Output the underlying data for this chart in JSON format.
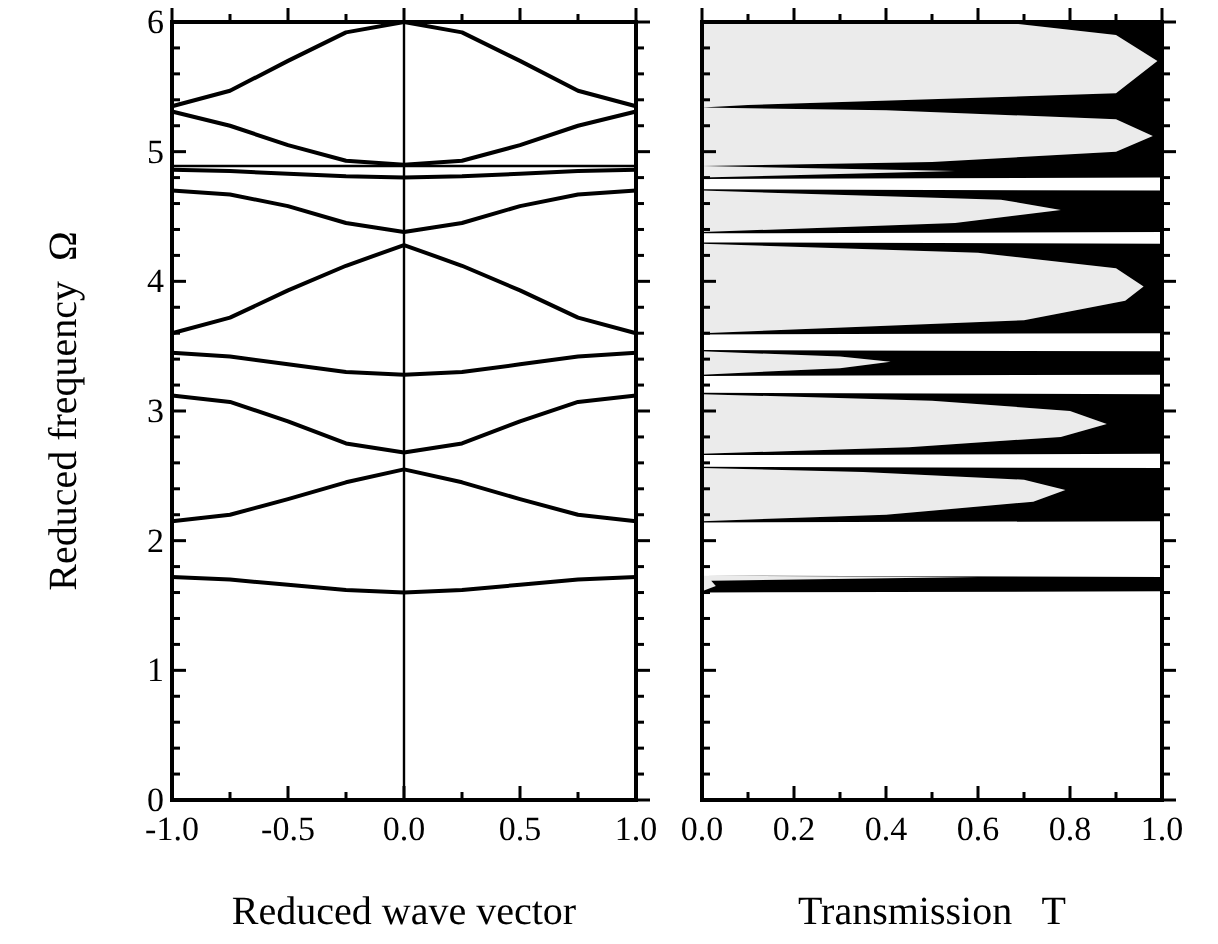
{
  "chart_data": [
    {
      "type": "line",
      "ylabel": "Reduced frequency  Ω",
      "xlabel": "Reduced wave vector",
      "x": [
        -1,
        -0.75,
        -0.5,
        -0.25,
        0,
        0.25,
        0.5,
        0.75,
        1
      ],
      "series": [
        {
          "color": "#000000",
          "values": [
            1.72,
            1.7,
            1.66,
            1.62,
            1.6,
            1.62,
            1.66,
            1.7,
            1.72
          ]
        },
        {
          "color": "#000000",
          "values": [
            2.15,
            2.2,
            2.32,
            2.45,
            2.55,
            2.45,
            2.32,
            2.2,
            2.15
          ]
        },
        {
          "color": "#000000",
          "values": [
            3.12,
            3.07,
            2.92,
            2.75,
            2.68,
            2.75,
            2.92,
            3.07,
            3.12
          ]
        },
        {
          "color": "#000000",
          "values": [
            3.45,
            3.42,
            3.36,
            3.3,
            3.28,
            3.3,
            3.36,
            3.42,
            3.45
          ]
        },
        {
          "color": "#000000",
          "values": [
            3.6,
            3.72,
            3.93,
            4.12,
            4.28,
            4.12,
            3.93,
            3.72,
            3.6
          ]
        },
        {
          "color": "#000000",
          "values": [
            4.7,
            4.67,
            4.58,
            4.45,
            4.38,
            4.45,
            4.58,
            4.67,
            4.7
          ]
        },
        {
          "color": "#000000",
          "values": [
            4.86,
            4.85,
            4.83,
            4.81,
            4.8,
            4.81,
            4.83,
            4.85,
            4.86
          ]
        },
        {
          "color": "#000000",
          "values": [
            5.31,
            5.2,
            5.05,
            4.93,
            4.9,
            4.93,
            5.05,
            5.2,
            5.31
          ]
        },
        {
          "color": "#000000",
          "values": [
            5.35,
            5.47,
            5.7,
            5.92,
            6.0,
            5.92,
            5.7,
            5.47,
            5.35
          ]
        }
      ],
      "ref_lines": [
        {
          "axis": "x",
          "value": 0,
          "color": "#000000"
        },
        {
          "axis": "y",
          "value": 4.89,
          "color": "#000000"
        }
      ],
      "xlim": [
        -1,
        1
      ],
      "xticks": [
        {
          "value": -1,
          "label": "-1.0"
        },
        {
          "value": -0.75,
          "label": null
        },
        {
          "value": -0.5,
          "label": "-0.5"
        },
        {
          "value": -0.25,
          "label": null
        },
        {
          "value": 0,
          "label": "0.0"
        },
        {
          "value": 0.25,
          "label": null
        },
        {
          "value": 0.5,
          "label": "0.5"
        },
        {
          "value": 0.75,
          "label": null
        },
        {
          "value": 1,
          "label": "1.0"
        }
      ],
      "ylim": [
        0,
        6
      ],
      "yticks": [
        0,
        {
          "value": 0.2,
          "label": null
        },
        {
          "value": 0.4,
          "label": null
        },
        {
          "value": 0.6,
          "label": null
        },
        {
          "value": 0.8,
          "label": null
        },
        1,
        {
          "value": 1.2,
          "label": null
        },
        {
          "value": 1.4,
          "label": null
        },
        {
          "value": 1.6,
          "label": null
        },
        {
          "value": 1.8,
          "label": null
        },
        2,
        {
          "value": 2.2,
          "label": null
        },
        {
          "value": 2.4,
          "label": null
        },
        {
          "value": 2.6,
          "label": null
        },
        {
          "value": 2.8,
          "label": null
        },
        3,
        {
          "value": 3.2,
          "label": null
        },
        {
          "value": 3.4,
          "label": null
        },
        {
          "value": 3.6,
          "label": null
        },
        {
          "value": 3.8,
          "label": null
        },
        4,
        {
          "value": 4.2,
          "label": null
        },
        {
          "value": 4.4,
          "label": null
        },
        {
          "value": 4.6,
          "label": null
        },
        {
          "value": 4.8,
          "label": null
        },
        5,
        {
          "value": 5.2,
          "label": null
        },
        {
          "value": 5.4,
          "label": null
        },
        {
          "value": 5.6,
          "label": null
        },
        {
          "value": 5.8,
          "label": null
        },
        6
      ],
      "grid": false
    },
    {
      "type": "area",
      "orientation": "horizontal",
      "stacked": true,
      "xlabel": "Transmission   T",
      "x": [
        0,
        1.6,
        1.61,
        1.65,
        1.69,
        1.72,
        1.73,
        2.14,
        2.15,
        2.2,
        2.3,
        2.39,
        2.47,
        2.53,
        2.56,
        2.57,
        2.66,
        2.67,
        2.72,
        2.8,
        2.9,
        3.0,
        3.08,
        3.13,
        3.14,
        3.27,
        3.28,
        3.33,
        3.38,
        3.42,
        3.46,
        3.47,
        3.59,
        3.6,
        3.7,
        3.85,
        3.96,
        4.1,
        4.22,
        4.29,
        4.3,
        4.37,
        4.38,
        4.45,
        4.55,
        4.63,
        4.7,
        4.71,
        4.79,
        4.8,
        4.85,
        4.89,
        4.92,
        5.0,
        5.12,
        5.25,
        5.32,
        5.34,
        5.36,
        5.45,
        5.7,
        5.9,
        6.0
      ],
      "series": [
        {
          "color": "#ebebeb",
          "values": [
            0,
            0,
            0,
            0.03,
            0.02,
            0.6,
            0,
            0,
            0,
            0.4,
            0.72,
            0.79,
            0.7,
            0.35,
            0,
            0,
            0,
            0,
            0.45,
            0.78,
            0.88,
            0.8,
            0.5,
            0,
            0,
            0,
            0,
            0.3,
            0.41,
            0.3,
            0,
            0,
            0,
            0,
            0.7,
            0.92,
            0.96,
            0.9,
            0.6,
            0,
            0,
            0,
            0,
            0.55,
            0.78,
            0.65,
            0,
            0,
            0,
            0,
            0.55,
            0,
            0.5,
            0.9,
            0.98,
            0.9,
            0.4,
            0,
            0.1,
            0.9,
            0.99,
            0.9,
            0.65
          ]
        },
        {
          "color": "#000000",
          "values": [
            0,
            0,
            1,
            0.97,
            0.98,
            0.4,
            0,
            0,
            1,
            0.6,
            0.28,
            0.21,
            0.3,
            0.65,
            1,
            0,
            0,
            1,
            0.55,
            0.22,
            0.12,
            0.2,
            0.5,
            1,
            0,
            0,
            1,
            0.7,
            0.59,
            0.7,
            1,
            0,
            0,
            1,
            0.3,
            0.08,
            0.04,
            0.1,
            0.4,
            1,
            0,
            0,
            1,
            0.45,
            0.22,
            0.35,
            1,
            0,
            0,
            1,
            0.45,
            1,
            0.5,
            0.1,
            0.02,
            0.1,
            0.6,
            1,
            0.9,
            0.1,
            0.01,
            0.1,
            0.35
          ]
        }
      ],
      "xlim": [
        0,
        1
      ],
      "xticks": [
        {
          "value": 0,
          "label": "0.0"
        },
        {
          "value": 0.1,
          "label": null
        },
        {
          "value": 0.2,
          "label": "0.2"
        },
        {
          "value": 0.3,
          "label": null
        },
        {
          "value": 0.4,
          "label": "0.4"
        },
        {
          "value": 0.5,
          "label": null
        },
        {
          "value": 0.6,
          "label": "0.6"
        },
        {
          "value": 0.7,
          "label": null
        },
        {
          "value": 0.8,
          "label": "0.8"
        },
        {
          "value": 0.9,
          "label": null
        },
        {
          "value": 1,
          "label": "1.0"
        }
      ],
      "ylim": [
        0,
        6
      ],
      "yticks": [
        0,
        {
          "value": 0.2,
          "label": null
        },
        {
          "value": 0.4,
          "label": null
        },
        {
          "value": 0.6,
          "label": null
        },
        {
          "value": 0.8,
          "label": null
        },
        1,
        {
          "value": 1.2,
          "label": null
        },
        {
          "value": 1.4,
          "label": null
        },
        {
          "value": 1.6,
          "label": null
        },
        {
          "value": 1.8,
          "label": null
        },
        2,
        {
          "value": 2.2,
          "label": null
        },
        {
          "value": 2.4,
          "label": null
        },
        {
          "value": 2.6,
          "label": null
        },
        {
          "value": 2.8,
          "label": null
        },
        3,
        {
          "value": 3.2,
          "label": null
        },
        {
          "value": 3.4,
          "label": null
        },
        {
          "value": 3.6,
          "label": null
        },
        {
          "value": 3.8,
          "label": null
        },
        4,
        {
          "value": 4.2,
          "label": null
        },
        {
          "value": 4.4,
          "label": null
        },
        {
          "value": 4.6,
          "label": null
        },
        {
          "value": 4.8,
          "label": null
        },
        5,
        {
          "value": 5.2,
          "label": null
        },
        {
          "value": 5.4,
          "label": null
        },
        {
          "value": 5.6,
          "label": null
        },
        {
          "value": 5.8,
          "label": null
        },
        6
      ],
      "tick_labels": "x",
      "grid": false
    }
  ]
}
